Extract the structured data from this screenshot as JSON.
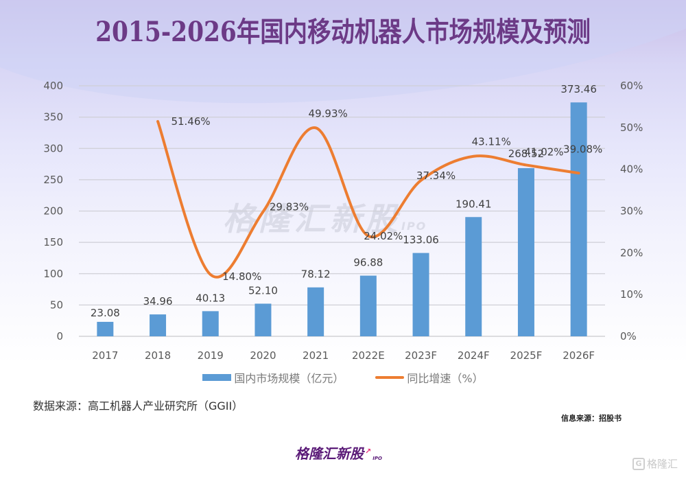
{
  "page": {
    "title": "2015-2026年国内移动机器人市场规模及预测",
    "source_note": "数据来源：高工机器人产业研究所（GGII）",
    "info_source": "信息来源：招股书",
    "brand_logo_text": "格隆汇新股",
    "brand_logo_suffix": "IPO",
    "watermark_text": "格隆汇新股",
    "watermark_suffix": "IPO",
    "corner_watermark_text": "格隆汇",
    "corner_watermark_icon": "G",
    "colors": {
      "title": "#6c3a86",
      "bar": "#5b9bd5",
      "line": "#ed7d31",
      "brand": "#5b1b78"
    }
  },
  "chart_data": {
    "type": "bar+line",
    "title": "2015-2026年国内移动机器人市场规模及预测",
    "categories": [
      "2017",
      "2018",
      "2019",
      "2020",
      "2021",
      "2022E",
      "2023F",
      "2024F",
      "2025F",
      "2026F"
    ],
    "series": [
      {
        "name": "国内市场规模（亿元）",
        "type": "bar",
        "axis": "left",
        "values": [
          23.08,
          34.96,
          40.13,
          52.1,
          78.12,
          96.88,
          133.06,
          190.41,
          268.52,
          373.46
        ],
        "labels": [
          "23.08",
          "34.96",
          "40.13",
          "52.10",
          "78.12",
          "96.88",
          "133.06",
          "190.41",
          "268.52",
          "373.46"
        ]
      },
      {
        "name": "同比增速（%）",
        "type": "line",
        "axis": "right",
        "values": [
          null,
          51.46,
          14.8,
          29.83,
          49.93,
          24.02,
          37.34,
          43.11,
          41.02,
          39.08
        ],
        "labels": [
          "",
          "51.46%",
          "14.80%",
          "29.83%",
          "49.93%",
          "24.02%",
          "37.34%",
          "43.11%",
          "41.02%",
          "39.08%"
        ]
      }
    ],
    "left_axis": {
      "ylim": [
        0,
        400
      ],
      "ticks": [
        0,
        50,
        100,
        150,
        200,
        250,
        300,
        350,
        400
      ],
      "tick_labels": [
        "0",
        "50",
        "100",
        "150",
        "200",
        "250",
        "300",
        "350",
        "400"
      ]
    },
    "right_axis": {
      "ylim": [
        0,
        60
      ],
      "ticks": [
        0,
        10,
        20,
        30,
        40,
        50,
        60
      ],
      "tick_labels": [
        "0%",
        "10%",
        "20%",
        "30%",
        "40%",
        "50%",
        "60%"
      ]
    },
    "xlabel": "",
    "ylabel": "",
    "grid": true,
    "legend": {
      "position": "bottom",
      "entries": [
        "国内市场规模（亿元）",
        "同比增速（%）"
      ]
    }
  }
}
